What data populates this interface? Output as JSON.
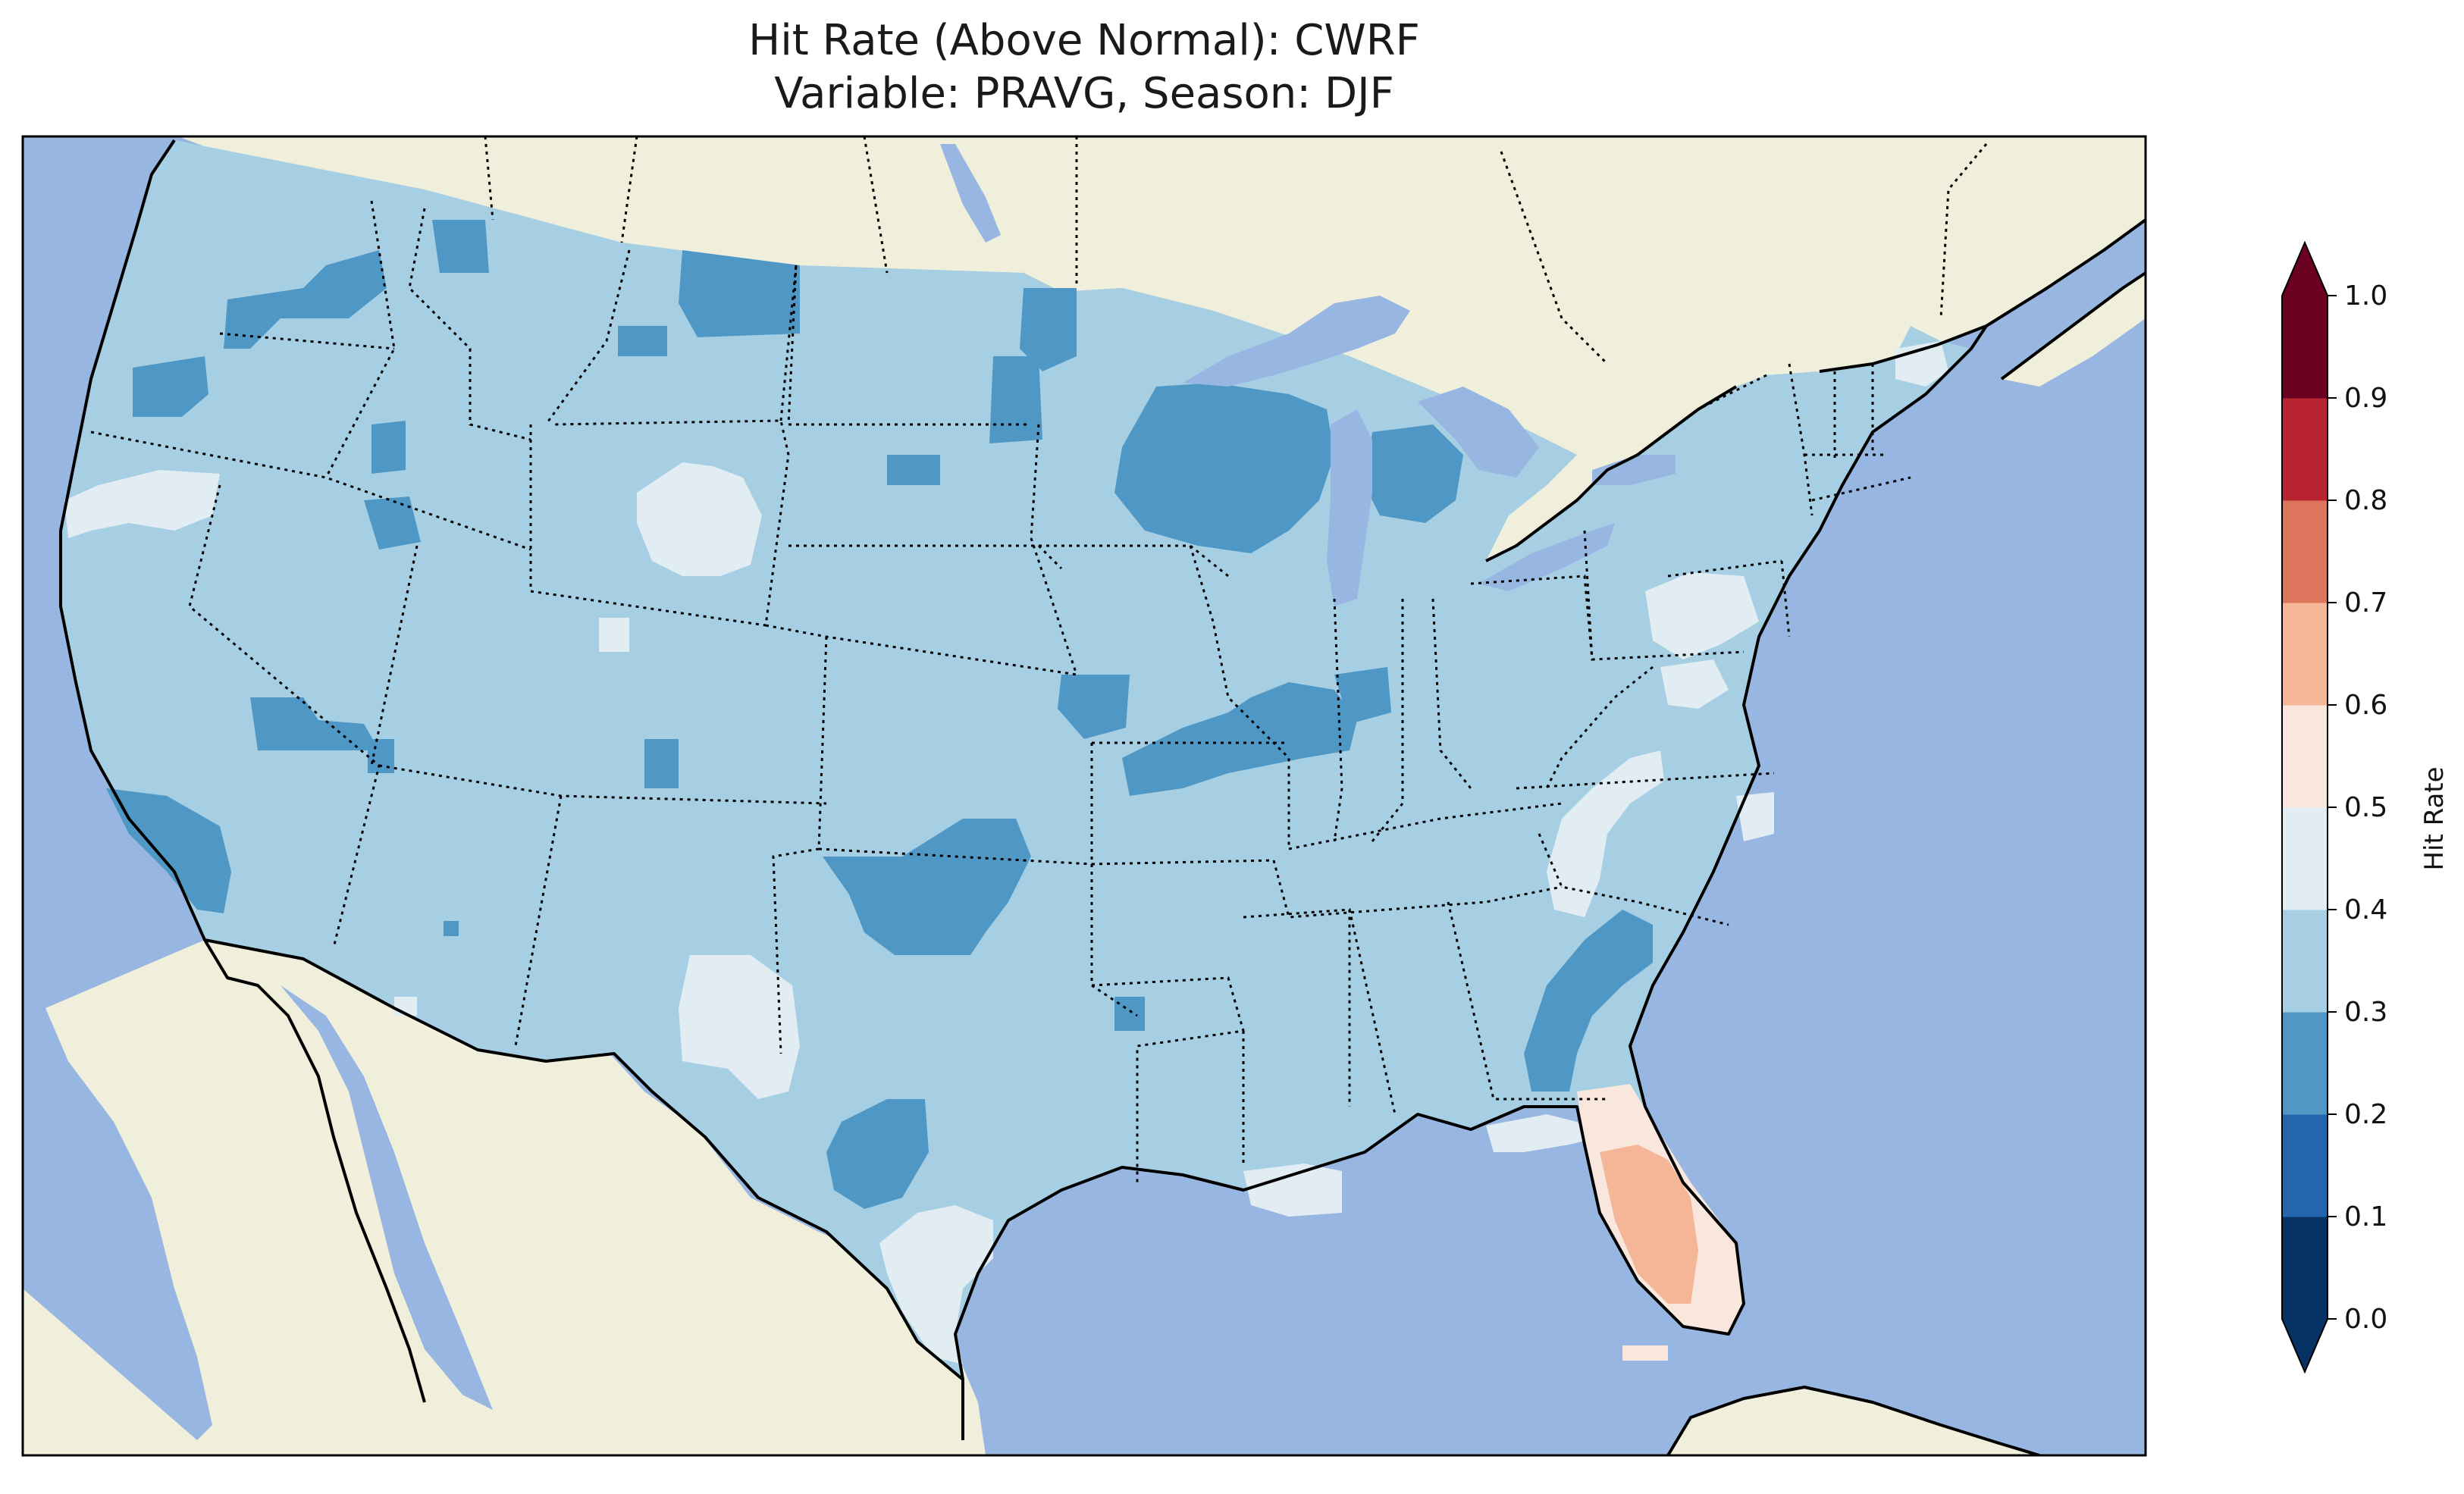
{
  "title": {
    "line1": "Hit Rate (Above Normal): CWRF",
    "line2": "Variable: PRAVG, Season: DJF"
  },
  "colors": {
    "ocean": "#97b6e1",
    "land": "#efefdc",
    "lakes": "#97b6e1",
    "coastline": "#000000",
    "borders": "#000000"
  },
  "colorbar": {
    "label": "Hit Rate",
    "ticks": [
      "0.0",
      "0.1",
      "0.2",
      "0.3",
      "0.4",
      "0.5",
      "0.6",
      "0.7",
      "0.8",
      "0.9",
      "1.0"
    ],
    "bins": [
      {
        "range": [
          0.0,
          0.1
        ],
        "color": "#073264"
      },
      {
        "range": [
          0.1,
          0.2
        ],
        "color": "#2467ae"
      },
      {
        "range": [
          0.2,
          0.3
        ],
        "color": "#4f98c6"
      },
      {
        "range": [
          0.3,
          0.4
        ],
        "color": "#a7cfe4"
      },
      {
        "range": [
          0.4,
          0.5
        ],
        "color": "#e2edf3"
      },
      {
        "range": [
          0.5,
          0.6
        ],
        "color": "#f9e6dc"
      },
      {
        "range": [
          0.6,
          0.7
        ],
        "color": "#f5b697"
      },
      {
        "range": [
          0.7,
          0.8
        ],
        "color": "#dd755d"
      },
      {
        "range": [
          0.8,
          0.9
        ],
        "color": "#b7232e"
      },
      {
        "range": [
          0.9,
          1.0
        ],
        "color": "#6a0121"
      }
    ],
    "extend": "both"
  },
  "field": {
    "background_bin": "0.3-0.4",
    "regions": [
      {
        "name": "Washington",
        "bin": "0.2-0.3"
      },
      {
        "name": "Northern Idaho / Montana",
        "bin": "0.2-0.3"
      },
      {
        "name": "Wisconsin / Michigan",
        "bin": "0.2-0.3"
      },
      {
        "name": "Missouri / Illinois",
        "bin": "0.2-0.3"
      },
      {
        "name": "Oklahoma",
        "bin": "0.2-0.3"
      },
      {
        "name": "Southern California",
        "bin": "0.2-0.3"
      },
      {
        "name": "Western Texas",
        "bin": "0.2-0.3"
      },
      {
        "name": "Georgia / South Carolina",
        "bin": "0.2-0.3"
      },
      {
        "name": "Northern California coast",
        "bin": "0.4-0.5"
      },
      {
        "name": "Wyoming",
        "bin": "0.4-0.5"
      },
      {
        "name": "New Mexico",
        "bin": "0.4-0.5"
      },
      {
        "name": "Southern Texas",
        "bin": "0.4-0.5"
      },
      {
        "name": "Pennsylvania",
        "bin": "0.4-0.5"
      },
      {
        "name": "Western North Carolina",
        "bin": "0.4-0.5"
      },
      {
        "name": "Northern Florida",
        "bin": "0.5-0.6"
      },
      {
        "name": "Central Florida",
        "bin": "0.6-0.7"
      }
    ]
  }
}
